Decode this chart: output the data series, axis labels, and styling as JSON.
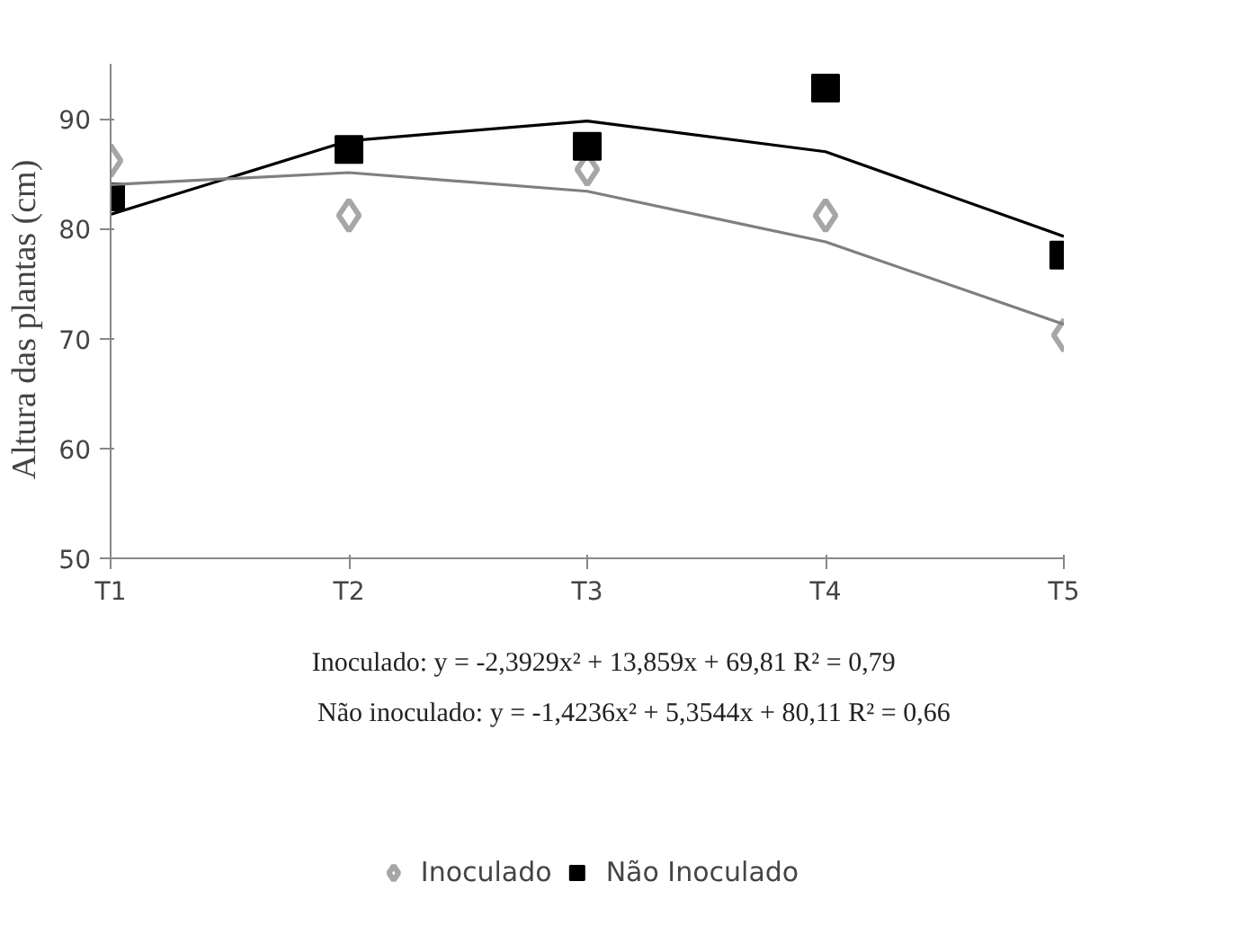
{
  "chart_data": {
    "type": "scatter",
    "ylabel": "Altura  das plantas  (cm)",
    "categories": [
      "T1",
      "T2",
      "T3",
      "T4",
      "T5"
    ],
    "ylim": [
      50,
      95
    ],
    "yticks": [
      50,
      60,
      70,
      80,
      90
    ],
    "grid": false,
    "legend": "bottom",
    "series": [
      {
        "name": "Inoculado",
        "color": "#a6a6a6",
        "marker": "diamond",
        "values": [
          86.2,
          81.2,
          85.4,
          81.2,
          70.3
        ]
      },
      {
        "name": "Não Inoculado",
        "color": "#000000",
        "marker": "square",
        "values": [
          82.9,
          87.2,
          87.5,
          92.8,
          77.6
        ]
      },
      {
        "type": "line",
        "color": "#000000",
        "values": [
          81.3,
          88.0,
          89.8,
          87.0,
          79.3
        ]
      },
      {
        "type": "line",
        "color": "#7f7f7f",
        "values": [
          84.0,
          85.1,
          83.4,
          78.8,
          71.3
        ]
      }
    ],
    "annotations": [
      "Inoculado: y = -2,3929x² + 13,859x + 69,81          R² = 0,79",
      "Não inoculado: y = -1,4236x² + 5,3544x + 80,11 R² = 0,66"
    ]
  }
}
